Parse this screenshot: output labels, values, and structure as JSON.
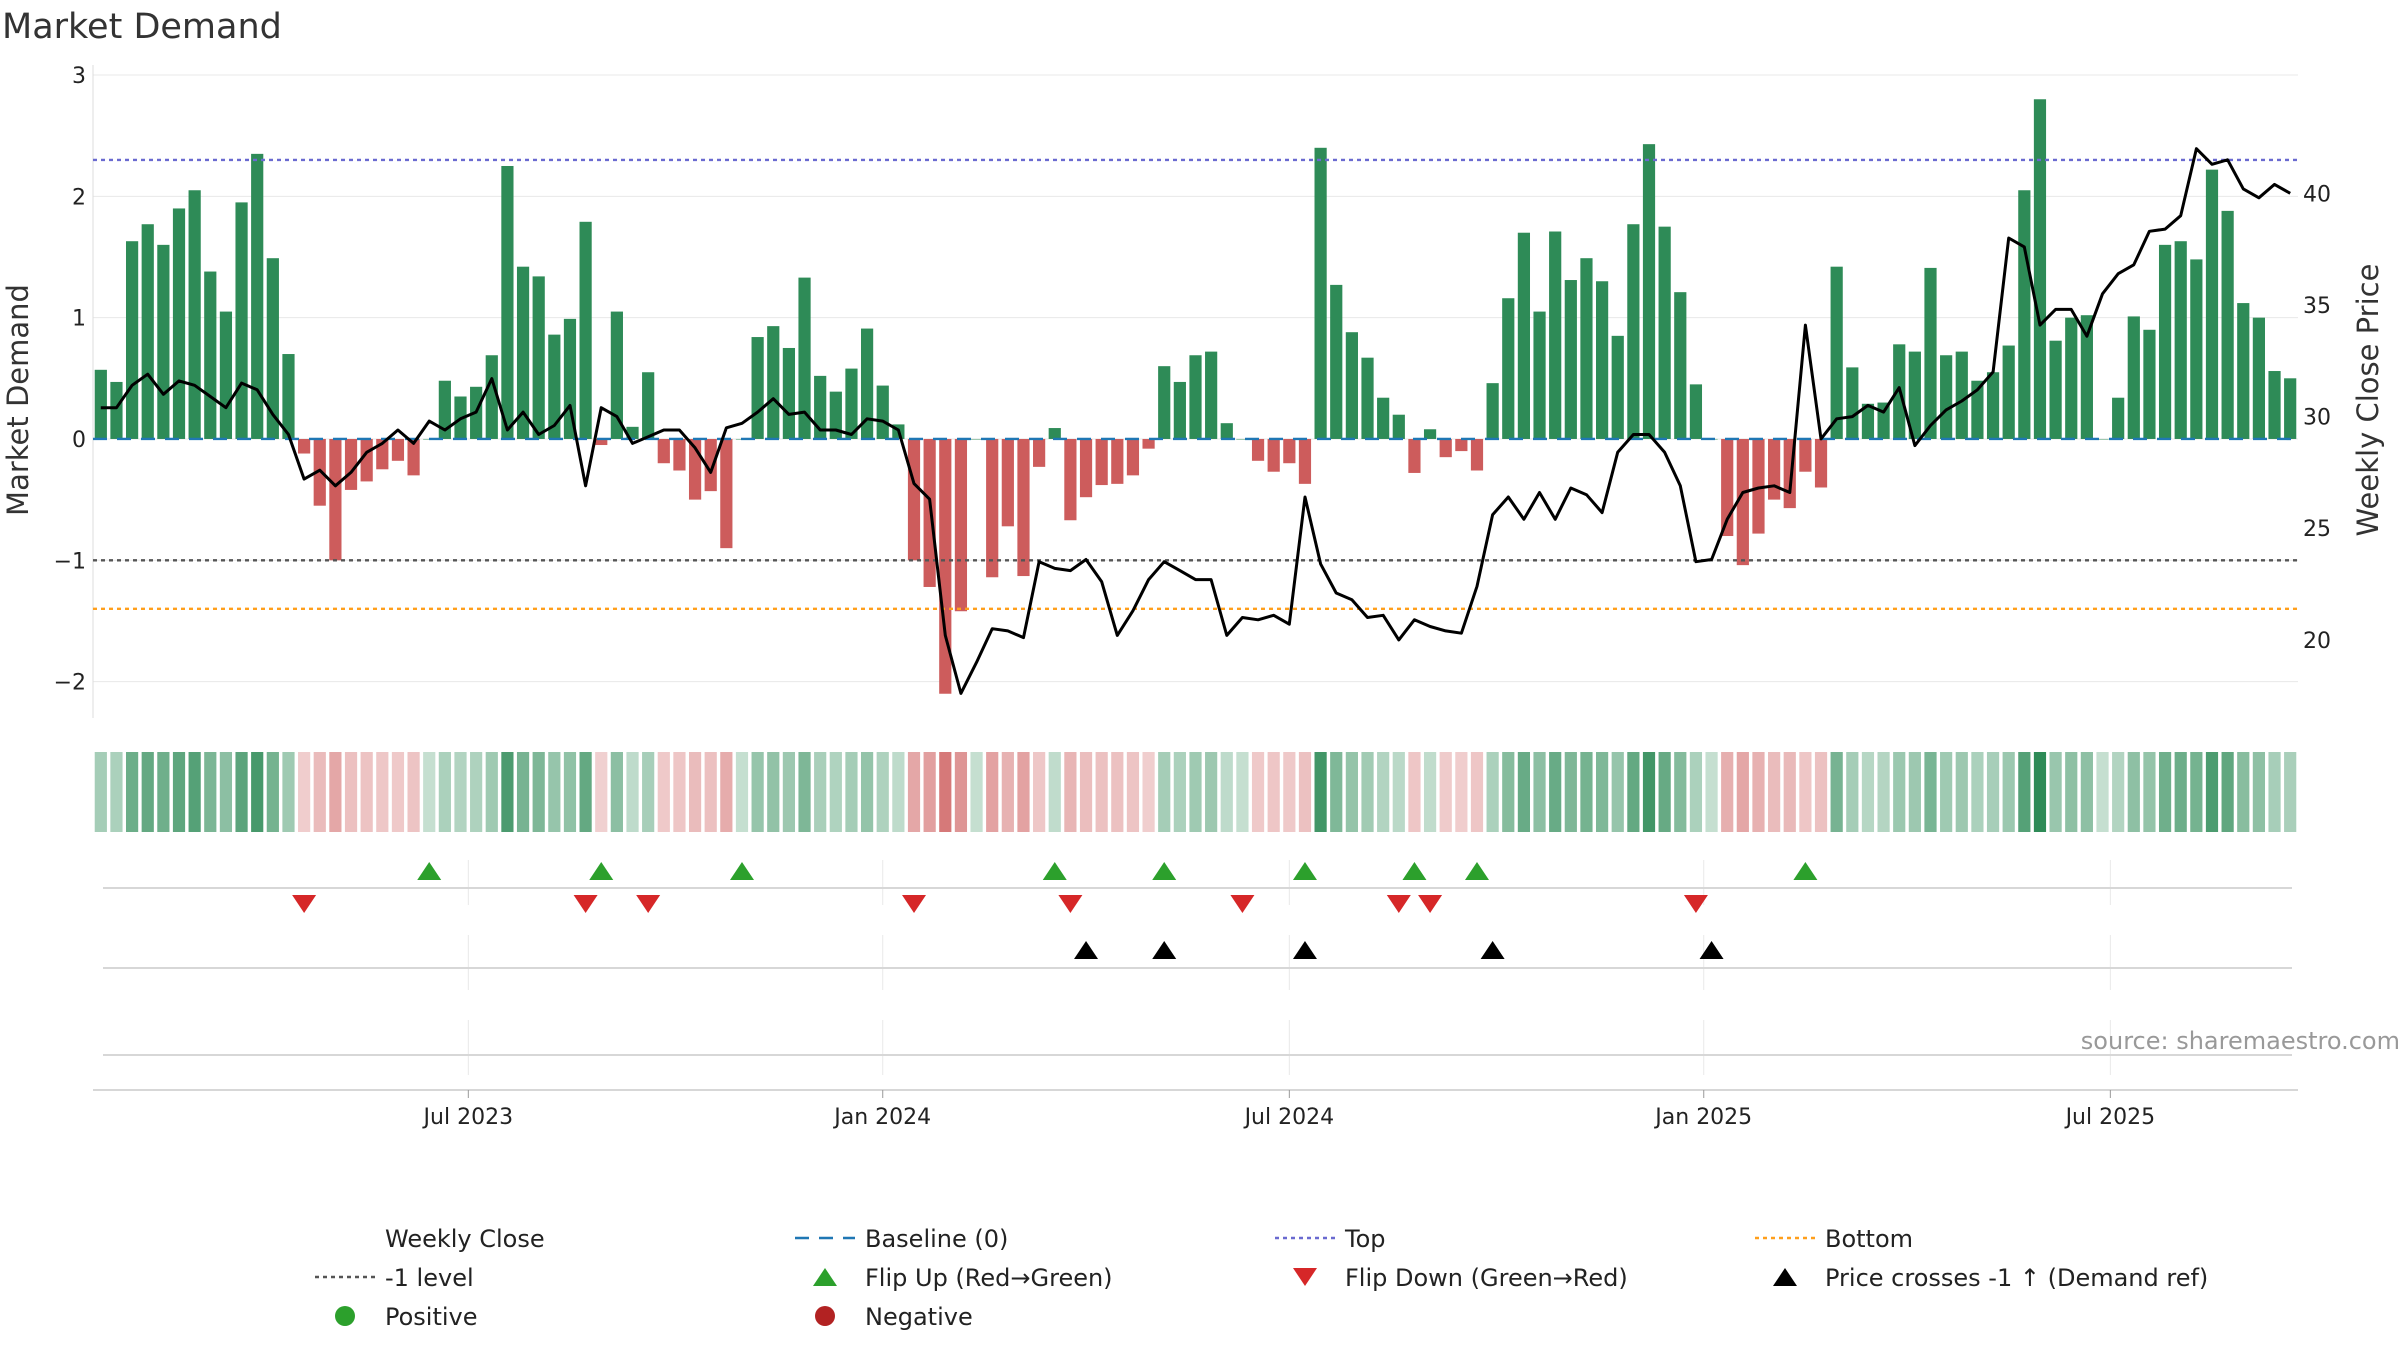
{
  "chart_data": {
    "type": "bar",
    "title": "Market Demand",
    "ylabel_left": "Market Demand",
    "ylabel_right": "Weekly Close Price",
    "source": "source: sharemaestro.com",
    "ylim_left": [
      -2.3,
      3.0
    ],
    "left_ticks": [
      {
        "v": 3,
        "label": "3"
      },
      {
        "v": 2,
        "label": "2"
      },
      {
        "v": 1,
        "label": "1"
      },
      {
        "v": 0,
        "label": "0"
      },
      {
        "v": -1,
        "label": "−1"
      },
      {
        "v": -2,
        "label": "−2"
      }
    ],
    "ylim_right": [
      16.5,
      45.3
    ],
    "right_ticks": [
      {
        "v": 40,
        "label": "40"
      },
      {
        "v": 35,
        "label": "35"
      },
      {
        "v": 30,
        "label": "30"
      },
      {
        "v": 25,
        "label": "25"
      },
      {
        "v": 20,
        "label": "20"
      }
    ],
    "x_ticks": [
      {
        "label": "Jul 2023",
        "week": 24
      },
      {
        "label": "Jan 2024",
        "week": 50.5
      },
      {
        "label": "Jul 2024",
        "week": 76.5
      },
      {
        "label": "Jan 2025",
        "week": 103
      },
      {
        "label": "Jul 2025",
        "week": 129
      }
    ],
    "reference_lines": {
      "top": 2.3,
      "minus_one": -1.0,
      "bottom": -1.4,
      "baseline": 0
    },
    "demand": [
      0.57,
      0.47,
      1.63,
      1.77,
      1.6,
      1.9,
      2.05,
      1.38,
      1.05,
      1.95,
      2.35,
      1.49,
      0.7,
      -0.12,
      -0.55,
      -1.0,
      -0.42,
      -0.35,
      -0.25,
      -0.18,
      -0.3,
      0.0,
      0.48,
      0.35,
      0.43,
      0.69,
      2.25,
      1.42,
      1.34,
      0.86,
      0.99,
      1.79,
      -0.05,
      1.05,
      0.1,
      0.55,
      -0.2,
      -0.26,
      -0.5,
      -0.43,
      -0.9,
      0.0,
      0.84,
      0.93,
      0.75,
      1.33,
      0.52,
      0.39,
      0.58,
      0.91,
      0.44,
      0.12,
      -1.0,
      -1.22,
      -2.1,
      -1.42,
      0.0,
      -1.14,
      -0.72,
      -1.13,
      -0.23,
      0.09,
      -0.67,
      -0.48,
      -0.38,
      -0.37,
      -0.3,
      -0.08,
      0.6,
      0.47,
      0.69,
      0.72,
      0.13,
      0.0,
      -0.18,
      -0.27,
      -0.2,
      -0.37,
      2.4,
      1.27,
      0.88,
      0.67,
      0.34,
      0.2,
      -0.28,
      0.08,
      -0.15,
      -0.1,
      -0.26,
      0.46,
      1.16,
      1.7,
      1.05,
      1.71,
      1.31,
      1.49,
      1.3,
      0.85,
      1.77,
      2.43,
      1.75,
      1.21,
      0.45,
      0.0,
      -0.8,
      -1.04,
      -0.78,
      -0.5,
      -0.57,
      -0.27,
      -0.4,
      1.42,
      0.59,
      0.29,
      0.3,
      0.78,
      0.72,
      1.41,
      0.69,
      0.72,
      0.48,
      0.55,
      0.77,
      2.05,
      2.8,
      0.81,
      1.0,
      1.02,
      0.0,
      0.34,
      1.01,
      0.9,
      1.6,
      1.63,
      1.48,
      2.22,
      1.88,
      1.12,
      1.0,
      0.56,
      0.5
    ],
    "close": [
      30.4,
      30.4,
      31.4,
      31.9,
      31.0,
      31.6,
      31.4,
      30.9,
      30.4,
      31.5,
      31.2,
      30.1,
      29.2,
      27.2,
      27.6,
      26.9,
      27.5,
      28.4,
      28.8,
      29.4,
      28.8,
      29.8,
      29.4,
      29.9,
      30.2,
      31.7,
      29.4,
      30.2,
      29.2,
      29.6,
      30.5,
      26.9,
      30.4,
      30.0,
      28.8,
      29.1,
      29.4,
      29.4,
      28.6,
      27.5,
      29.5,
      29.7,
      30.2,
      30.8,
      30.1,
      30.2,
      29.4,
      29.4,
      29.2,
      29.9,
      29.8,
      29.4,
      27.0,
      26.3,
      20.2,
      17.6,
      19.0,
      20.5,
      20.4,
      20.1,
      23.5,
      23.2,
      23.1,
      23.6,
      22.6,
      20.2,
      21.3,
      22.7,
      23.5,
      23.1,
      22.7,
      22.7,
      20.2,
      21.0,
      20.9,
      21.1,
      20.7,
      26.4,
      23.4,
      22.1,
      21.8,
      21.0,
      21.1,
      20.0,
      20.9,
      20.6,
      20.4,
      20.3,
      22.4,
      25.6,
      26.4,
      25.4,
      26.6,
      25.4,
      26.8,
      26.5,
      25.7,
      28.4,
      29.2,
      29.2,
      28.4,
      26.9,
      23.5,
      23.6,
      25.4,
      26.6,
      26.8,
      26.9,
      26.6,
      34.1,
      29.0,
      29.9,
      30.0,
      30.5,
      30.2,
      31.3,
      28.7,
      29.6,
      30.3,
      30.7,
      31.2,
      32.0,
      38.0,
      37.6,
      34.1,
      34.8,
      34.8,
      33.6,
      35.5,
      36.4,
      36.8,
      38.3,
      38.4,
      39.0,
      42.0,
      41.3,
      41.5,
      40.2,
      39.8,
      40.4,
      40.0
    ],
    "flip_up_weeks": [
      21,
      32,
      41,
      61,
      68,
      77,
      84,
      88,
      109
    ],
    "flip_down_weeks": [
      13,
      31,
      35,
      52,
      62,
      73,
      83,
      85,
      102
    ],
    "price_cross_weeks": [
      63,
      68,
      77,
      89,
      103
    ],
    "colors": {
      "positive_bar": "#2e8b57",
      "negative_bar": "#cd5c5c",
      "close_line": "#000000",
      "baseline": "#1f77b4",
      "top": "#6a6ad0",
      "minus_one": "#555555",
      "bottom": "#ff9f1c",
      "flip_up": "#2ca02c",
      "flip_down": "#d62728",
      "price_cross": "#000000",
      "legend_positive": "#2ca02c",
      "legend_negative": "#b22222"
    },
    "legend": [
      {
        "key": "close",
        "label": "Weekly Close",
        "kind": "line"
      },
      {
        "key": "baseline",
        "label": "Baseline (0)",
        "kind": "dash"
      },
      {
        "key": "top",
        "label": "Top",
        "kind": "dot"
      },
      {
        "key": "bottom",
        "label": "Bottom",
        "kind": "dot"
      },
      {
        "key": "minus_one",
        "label": "-1 level",
        "kind": "dot"
      },
      {
        "key": "flip_up",
        "label": "Flip Up (Red→Green)",
        "kind": "tri-up"
      },
      {
        "key": "flip_down",
        "label": "Flip Down (Green→Red)",
        "kind": "tri-down"
      },
      {
        "key": "price_cross",
        "label": "Price crosses -1 ↑ (Demand ref)",
        "kind": "tri-up"
      },
      {
        "key": "legend_positive",
        "label": "Positive",
        "kind": "circle"
      },
      {
        "key": "legend_negative",
        "label": "Negative",
        "kind": "circle"
      }
    ]
  }
}
